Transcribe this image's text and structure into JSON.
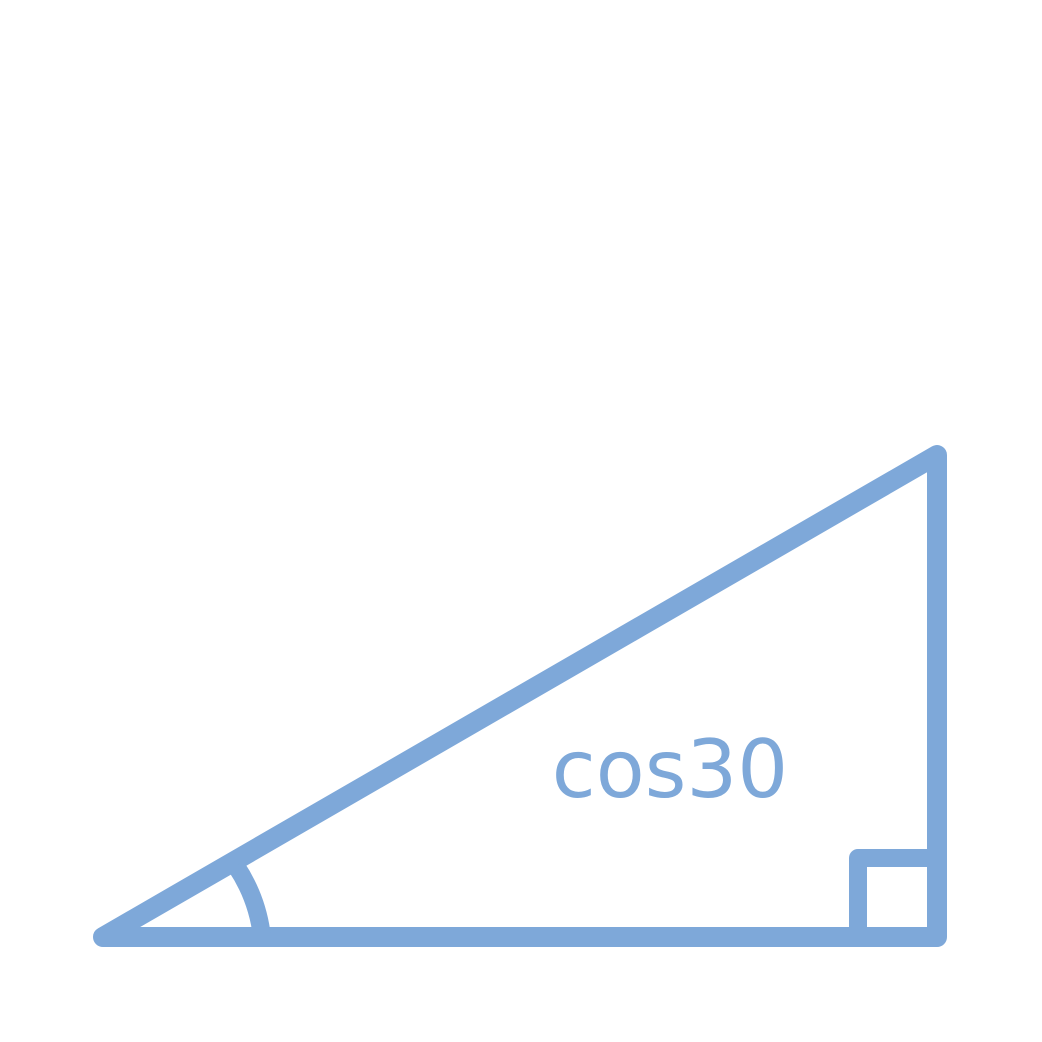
{
  "diagram": {
    "label": "cos30",
    "stroke_color": "#7ea8d9",
    "text_color": "#7ea8d9",
    "background": "#ffffff",
    "marks": {
      "angle_arc": true,
      "right_angle_square": true
    }
  }
}
